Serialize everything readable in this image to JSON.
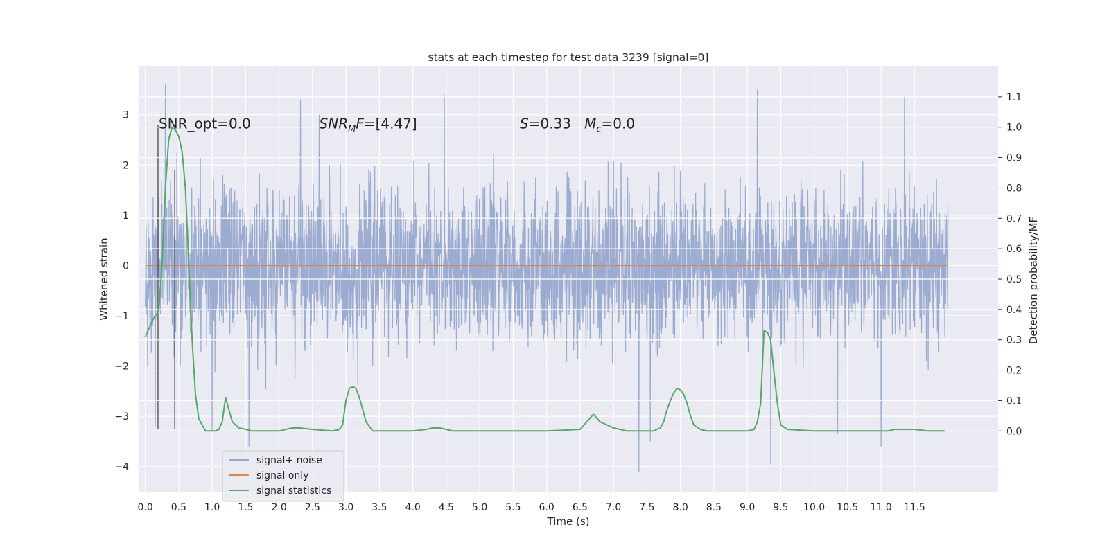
{
  "chart_data": {
    "type": "line",
    "title": "stats at each timestep for test data 3239 [signal=0]",
    "xlabel": "Time (s)",
    "ylabel": "Whitened strain",
    "y2label": "Detection probability/MF",
    "xlim": [
      -0.1,
      12.75
    ],
    "ylim": [
      -4.5,
      3.96
    ],
    "y2lim": [
      -0.2,
      1.2
    ],
    "x_ticks": [
      0.0,
      0.5,
      1.0,
      1.5,
      2.0,
      2.5,
      3.0,
      3.5,
      4.0,
      4.5,
      5.0,
      5.5,
      6.0,
      6.5,
      7.0,
      7.5,
      8.0,
      8.5,
      9.0,
      9.5,
      10.0,
      10.5,
      11.0,
      11.5
    ],
    "x_tick_labels": [
      "0.0",
      "0.5",
      "1.0",
      "1.5",
      "2.0",
      "2.5",
      "3.0",
      "3.5",
      "4.0",
      "4.5",
      "5.0",
      "5.5",
      "6.0",
      "6.5",
      "7.0",
      "7.5",
      "8.0",
      "8.5",
      "9.0",
      "9.5",
      "10.0",
      "10.5",
      "11.0",
      "11.5"
    ],
    "y_ticks": [
      -4,
      -3,
      -2,
      -1,
      0,
      1,
      2,
      3
    ],
    "y_tick_labels": [
      "−4",
      "−3",
      "−2",
      "−1",
      "0",
      "1",
      "2",
      "3"
    ],
    "y2_ticks": [
      0.0,
      0.1,
      0.2,
      0.3,
      0.4,
      0.5,
      0.6,
      0.7,
      0.8,
      0.9,
      1.0,
      1.1
    ],
    "y2_tick_labels": [
      "0.0",
      "0.1",
      "0.2",
      "0.3",
      "0.4",
      "0.5",
      "0.6",
      "0.7",
      "0.8",
      "0.9",
      "1.0",
      "1.1"
    ],
    "grid": true,
    "legend_position": "lower-left",
    "colors": {
      "background": "#eaeaf2",
      "grid": "#ffffff",
      "noise": "#98a9cf",
      "signal": "#dd8452",
      "stats": "#55a868",
      "vlines": "#555555"
    },
    "series": [
      {
        "name": "signal+ noise",
        "axis": "left",
        "t_range": [
          0.0,
          12.0
        ],
        "envelope_percentiles": {
          "p1": -1.7,
          "p99": 1.8
        },
        "extremes": [
          {
            "x": 0.3,
            "y": 3.6
          },
          {
            "x": 2.32,
            "y": 3.3
          },
          {
            "x": 2.6,
            "y": 3.0
          },
          {
            "x": 4.47,
            "y": 3.4
          },
          {
            "x": 9.15,
            "y": 3.5
          },
          {
            "x": 11.35,
            "y": 3.35
          },
          {
            "x": 1.55,
            "y": -3.6
          },
          {
            "x": 7.38,
            "y": -4.1
          },
          {
            "x": 9.35,
            "y": -3.95
          },
          {
            "x": 10.35,
            "y": -3.35
          },
          {
            "x": 11.0,
            "y": -3.6
          },
          {
            "x": 7.55,
            "y": -3.5
          },
          {
            "x": 0.15,
            "y": -3.2
          },
          {
            "x": 1.0,
            "y": -3.3
          }
        ]
      },
      {
        "name": "signal only",
        "axis": "left",
        "x": [
          0.0,
          12.0
        ],
        "y": [
          0.0,
          0.0
        ]
      },
      {
        "name": "signal statistics",
        "axis": "right",
        "x": [
          0.0,
          0.1,
          0.15,
          0.2,
          0.25,
          0.3,
          0.35,
          0.4,
          0.45,
          0.5,
          0.55,
          0.6,
          0.65,
          0.7,
          0.75,
          0.8,
          0.9,
          1.0,
          1.05,
          1.1,
          1.15,
          1.2,
          1.25,
          1.3,
          1.4,
          1.6,
          1.8,
          2.0,
          2.1,
          2.2,
          2.3,
          2.5,
          2.8,
          2.9,
          2.95,
          3.0,
          3.05,
          3.1,
          3.15,
          3.2,
          3.25,
          3.3,
          3.4,
          3.6,
          4.0,
          4.2,
          4.3,
          4.4,
          4.6,
          5.0,
          5.5,
          6.0,
          6.5,
          6.6,
          6.7,
          6.8,
          7.0,
          7.2,
          7.4,
          7.6,
          7.7,
          7.75,
          7.8,
          7.85,
          7.9,
          7.95,
          8.0,
          8.05,
          8.1,
          8.15,
          8.2,
          8.3,
          8.4,
          8.6,
          8.8,
          9.0,
          9.1,
          9.15,
          9.2,
          9.25,
          9.3,
          9.35,
          9.4,
          9.45,
          9.5,
          9.6,
          10.0,
          10.5,
          11.0,
          11.1,
          11.2,
          11.5,
          11.7,
          11.9,
          11.95
        ],
        "y": [
          0.31,
          0.36,
          0.38,
          0.39,
          0.55,
          0.8,
          0.96,
          1.0,
          0.99,
          0.97,
          0.92,
          0.8,
          0.55,
          0.3,
          0.12,
          0.04,
          0.0,
          0.0,
          0.0,
          0.005,
          0.03,
          0.11,
          0.07,
          0.03,
          0.01,
          0.0,
          0.0,
          0.0,
          0.005,
          0.01,
          0.01,
          0.005,
          0.0,
          0.005,
          0.02,
          0.1,
          0.14,
          0.145,
          0.14,
          0.11,
          0.07,
          0.03,
          0.0,
          0.0,
          0.0,
          0.005,
          0.01,
          0.01,
          0.0,
          0.0,
          0.0,
          0.0,
          0.005,
          0.03,
          0.055,
          0.03,
          0.01,
          0.0,
          0.0,
          0.0,
          0.01,
          0.03,
          0.07,
          0.1,
          0.125,
          0.14,
          0.135,
          0.12,
          0.09,
          0.05,
          0.02,
          0.005,
          0.0,
          0.0,
          0.0,
          0.0,
          0.005,
          0.03,
          0.09,
          0.33,
          0.325,
          0.3,
          0.19,
          0.09,
          0.02,
          0.005,
          0.0,
          0.0,
          0.0,
          0.0,
          0.005,
          0.005,
          0.0,
          0.0,
          0.0
        ]
      }
    ],
    "vertical_lines": [
      {
        "x": 0.19,
        "y": [
          -3.25,
          2.8
        ]
      },
      {
        "x": 0.44,
        "y": [
          -3.25,
          1.9
        ]
      }
    ],
    "annotations": [
      {
        "x": 0.2,
        "y": 2.85,
        "text": "SNR_opt=0.0"
      },
      {
        "x": 2.6,
        "y": 2.85,
        "text": "SNR_MF=[4.47]",
        "mathtext": true
      },
      {
        "x": 5.6,
        "y": 2.85,
        "text": "S=0.33   M_c=0.0",
        "mathtext": true
      }
    ]
  }
}
